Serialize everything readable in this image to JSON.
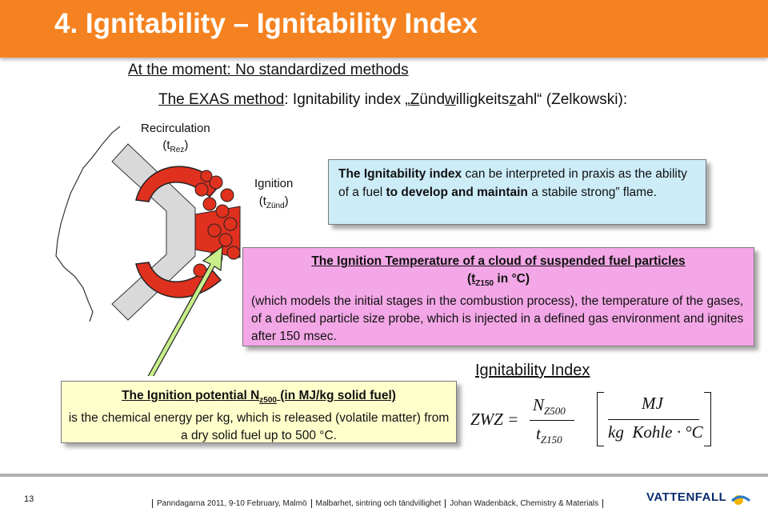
{
  "title": "4. Ignitability – Ignitability Index",
  "intro": "At the moment: No standardized methods",
  "exas": {
    "part1": "The EXAS method",
    "part2": ": Ignitability index „",
    "z1": "Z",
    "mid1": "ünd",
    "w": "w",
    "mid2": "illigkeits",
    "z2": "z",
    "part3": "ahl“ (Zelkowski):"
  },
  "recirculation": {
    "label": "Recirculation",
    "symbol": "(t",
    "sub": "Rez",
    "close": ")"
  },
  "ignition": {
    "label": "Ignition",
    "symbol": "(t",
    "sub": "Zünd",
    "close": ")"
  },
  "blue_box": {
    "t1": "The Ignitability index",
    "t2": " can be interpreted in praxis as the ability of a fuel ",
    "t3": "to develop and  maintain",
    "t4": " a stabile strong” flame."
  },
  "pink_box": {
    "heading": "The Ignition Temperature of a cloud of suspended fuel particles",
    "unit_open": "(t",
    "unit_sub": "Z150",
    "unit_rest": " in °C)",
    "body": "(which models the initial stages in the combustion process), the temperature of the gases, of a defined particle size probe, which is injected in a defined gas environment and ignites after 150 msec."
  },
  "yellow_box": {
    "head1": "The Ignition potential  N",
    "head_sub": "z500",
    "head2": " (in MJ/kg solid fuel)",
    "body": "is the chemical energy per kg, which is released (volatile matter) from a dry solid fuel up to 500 °C."
  },
  "ignitability_index_title": "Ignitability Index",
  "formula": {
    "lhs": "ZWZ =",
    "num": "N",
    "num_sub": "Z500",
    "den": "t",
    "den_sub": "Z150",
    "unit_num": "MJ",
    "unit_den": "kg  Kohle · °C"
  },
  "footer": {
    "page": "13",
    "items": [
      "Panndagarna 2011, 9-10 February, Malmö",
      "Malbarhet, sintring och tändvillighet",
      "Johan Wadenbäck, Chemistry & Materials"
    ],
    "logo": "VATTENFALL"
  },
  "colors": {
    "title_bar": "#f58220",
    "blue_box": "#ccecf8",
    "pink_box": "#f3a7e6",
    "yellow_box": "#ffffcc",
    "flame": "#e0301e",
    "arrow": "#c8ef8a"
  }
}
